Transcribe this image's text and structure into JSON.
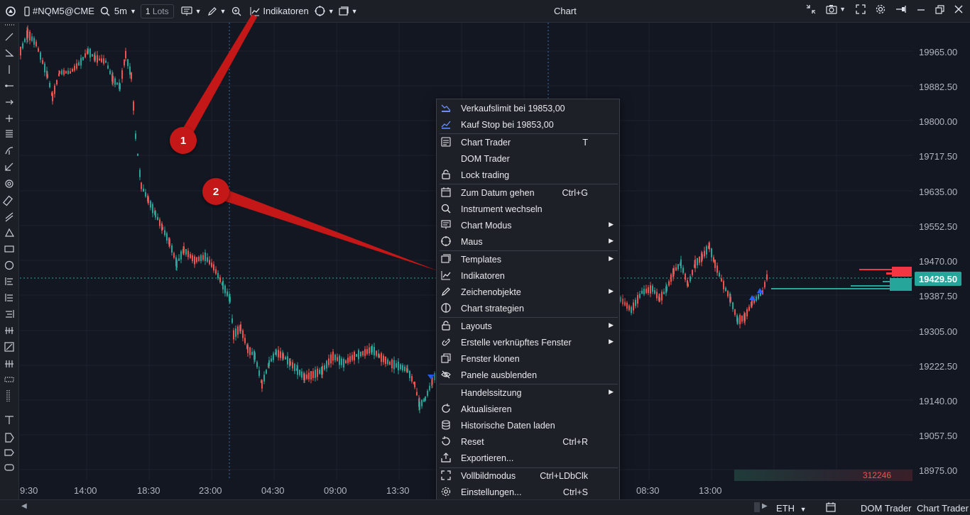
{
  "toolbar": {
    "symbol": "#NQM5@CME",
    "timeframe": "5m",
    "lots_value": "1",
    "lots_unit": "Lots",
    "indicators_label": "Indikatoren",
    "title": "Chart"
  },
  "price_axis": {
    "labels": [
      "19965.00",
      "19882.50",
      "19800.00",
      "19717.50",
      "19635.00",
      "19552.50",
      "19470.00",
      "19387.50",
      "19305.00",
      "19222.50",
      "19140.00",
      "19057.50",
      "18975.00"
    ],
    "current_price": "19429.50"
  },
  "time_axis": {
    "labels": [
      "9:30",
      "14:00",
      "18:30",
      "23:00",
      "04:30",
      "09:00",
      "13:30",
      "08:30",
      "13:00"
    ]
  },
  "volume_box": "312246",
  "menu": {
    "items": [
      {
        "label": "Verkaufslimit bei 19853,00",
        "shortcut": "",
        "submenu": false,
        "icon": "sell-limit-icon"
      },
      {
        "label": "Kauf Stop bei 19853,00",
        "shortcut": "",
        "submenu": false,
        "icon": "buy-stop-icon"
      },
      {
        "label": "Chart Trader",
        "shortcut": "T",
        "submenu": false,
        "icon": "chart-trader-icon"
      },
      {
        "label": "DOM Trader",
        "shortcut": "",
        "submenu": false,
        "icon": ""
      },
      {
        "label": "Lock trading",
        "shortcut": "",
        "submenu": false,
        "icon": "lock-icon"
      },
      {
        "label": "Zum Datum gehen",
        "shortcut": "Ctrl+G",
        "submenu": false,
        "icon": "calendar-icon"
      },
      {
        "label": "Instrument wechseln",
        "shortcut": "",
        "submenu": false,
        "icon": "search-icon"
      },
      {
        "label": "Chart Modus",
        "shortcut": "",
        "submenu": true,
        "icon": "chart-mode-icon"
      },
      {
        "label": "Maus",
        "shortcut": "",
        "submenu": true,
        "icon": "crosshair-icon"
      },
      {
        "label": "Templates",
        "shortcut": "",
        "submenu": true,
        "icon": "templates-icon"
      },
      {
        "label": "Indikatoren",
        "shortcut": "",
        "submenu": false,
        "icon": "indicators-icon"
      },
      {
        "label": "Zeichenobjekte",
        "shortcut": "",
        "submenu": true,
        "icon": "pencil-icon"
      },
      {
        "label": "Chart strategien",
        "shortcut": "",
        "submenu": false,
        "icon": "strategy-icon"
      },
      {
        "label": "Layouts",
        "shortcut": "",
        "submenu": true,
        "icon": "lock-icon"
      },
      {
        "label": "Erstelle verknüpftes Fenster",
        "shortcut": "",
        "submenu": true,
        "icon": "link-icon"
      },
      {
        "label": "Fenster klonen",
        "shortcut": "",
        "submenu": false,
        "icon": "clone-icon"
      },
      {
        "label": "Panele ausblenden",
        "shortcut": "",
        "submenu": false,
        "icon": "eye-off-icon"
      },
      {
        "label": "Handelssitzung",
        "shortcut": "",
        "submenu": true,
        "icon": ""
      },
      {
        "label": "Aktualisieren",
        "shortcut": "",
        "submenu": false,
        "icon": "refresh-icon"
      },
      {
        "label": "Historische Daten laden",
        "shortcut": "",
        "submenu": false,
        "icon": "database-icon"
      },
      {
        "label": "Reset",
        "shortcut": "Ctrl+R",
        "submenu": false,
        "icon": "reset-icon"
      },
      {
        "label": "Exportieren...",
        "shortcut": "",
        "submenu": false,
        "icon": "export-icon"
      },
      {
        "label": "Vollbildmodus",
        "shortcut": "Ctrl+LDbClk",
        "submenu": false,
        "icon": "fullscreen-icon"
      },
      {
        "label": "Einstellungen...",
        "shortcut": "Ctrl+S",
        "submenu": false,
        "icon": "gear-icon"
      }
    ]
  },
  "annotations": [
    "1",
    "2"
  ],
  "bottombar": {
    "session": "ETH",
    "dom_trader": "DOM Trader",
    "chart_trader": "Chart Trader"
  },
  "colors": {
    "background": "#131722",
    "bull": "#26a69a",
    "bear": "#ef5350",
    "annotation": "#c41717",
    "badge": "#26a69a"
  }
}
